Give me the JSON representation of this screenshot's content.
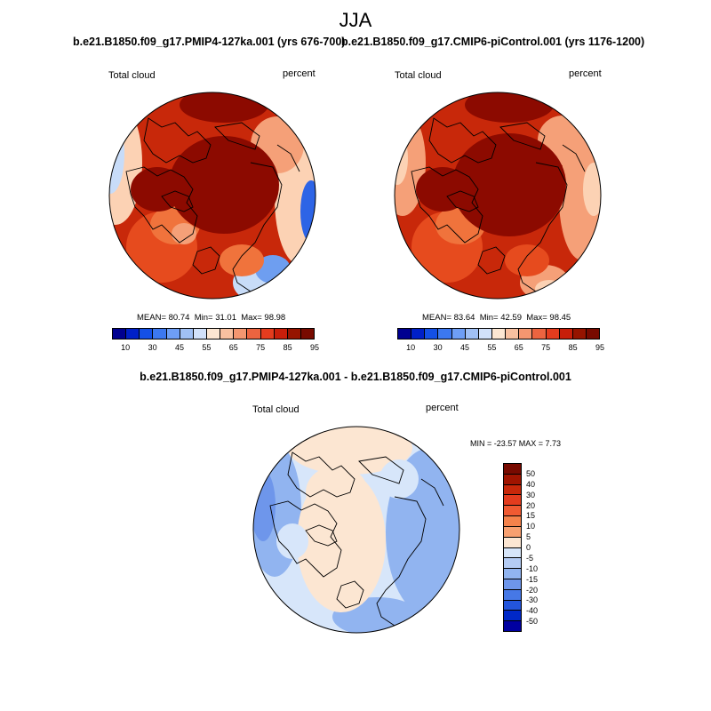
{
  "figure": {
    "title": "JJA"
  },
  "panels": [
    {
      "title": "b.e21.B1850.f09_g17.PMIP4-127ka.001 (yrs 676-700)",
      "variable": "Total cloud",
      "units": "percent",
      "mean": "80.74",
      "min": "31.01",
      "max": "98.98"
    },
    {
      "title": "b.e21.B1850.f09_g17.CMIP6-piControl.001 (yrs 1176-1200)",
      "variable": "Total cloud",
      "units": "percent",
      "mean": "83.64",
      "min": "42.59",
      "max": "98.45"
    }
  ],
  "abs_colorbar": {
    "colors": [
      "#000090",
      "#0020c8",
      "#1450e6",
      "#3c78f0",
      "#6e9ef5",
      "#a0c0f5",
      "#d2e1fa",
      "#fce6d2",
      "#f8c0a0",
      "#f49670",
      "#ec6440",
      "#e43c1e",
      "#c81e0a",
      "#961400",
      "#780a00"
    ],
    "tick_labels": [
      "10",
      "30",
      "45",
      "55",
      "65",
      "75",
      "85",
      "95"
    ]
  },
  "diff_panel": {
    "title": "b.e21.B1850.f09_g17.PMIP4-127ka.001 - b.e21.B1850.f09_g17.CMIP6-piControl.001",
    "variable": "Total cloud",
    "units": "percent",
    "minmax_text": "MIN = -23.57 MAX =   7.73"
  },
  "diff_colorbar": {
    "colors": [
      "#780a00",
      "#a01400",
      "#c8280a",
      "#e43c1e",
      "#f05a32",
      "#f5824b",
      "#f8a070",
      "#fce6d2",
      "#d7e6fa",
      "#b4ccf5",
      "#91b4f0",
      "#6e96eb",
      "#4678e6",
      "#2355dc",
      "#0028c8",
      "#0000a0"
    ],
    "tick_labels": [
      "50",
      "40",
      "30",
      "20",
      "15",
      "10",
      "5",
      "0",
      "-5",
      "-10",
      "-15",
      "-20",
      "-30",
      "-40",
      "-50"
    ]
  },
  "map_palette": {
    "dark_red": "#8c0a00",
    "red": "#c8280a",
    "orange_red": "#e64b1e",
    "orange": "#f0733c",
    "salmon": "#f5a078",
    "peach": "#fcd2b4",
    "light_blue": "#c8dcf8",
    "mid_blue": "#6e9ef0",
    "blue": "#2d64e6",
    "diff_peach": "#fce6d2",
    "diff_light_blue": "#d7e6fa",
    "diff_mid_blue": "#91b4f0",
    "diff_blue": "#6e96eb"
  }
}
